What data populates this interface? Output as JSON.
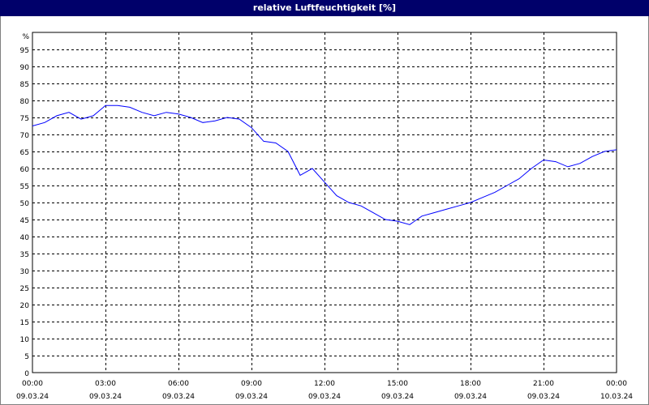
{
  "title": "relative Luftfeuchtigkeit [%]",
  "colors": {
    "title_bg": "#00006a",
    "title_fg": "#ffffff",
    "line": "#0000ff",
    "grid": "#000000"
  },
  "chart_data": {
    "type": "line",
    "title": "relative Luftfeuchtigkeit [%]",
    "ylabel": "%",
    "ylim": [
      0,
      100
    ],
    "yticks": [
      0,
      5,
      10,
      15,
      20,
      25,
      30,
      35,
      40,
      45,
      50,
      55,
      60,
      65,
      70,
      75,
      80,
      85,
      90,
      95
    ],
    "xlim": [
      "09.03.24 00:00",
      "10.03.24 00:00"
    ],
    "xticks": [
      {
        "time": "00:00",
        "date": "09.03.24"
      },
      {
        "time": "03:00",
        "date": "09.03.24"
      },
      {
        "time": "06:00",
        "date": "09.03.24"
      },
      {
        "time": "09:00",
        "date": "09.03.24"
      },
      {
        "time": "12:00",
        "date": "09.03.24"
      },
      {
        "time": "15:00",
        "date": "09.03.24"
      },
      {
        "time": "18:00",
        "date": "09.03.24"
      },
      {
        "time": "21:00",
        "date": "09.03.24"
      },
      {
        "time": "00:00",
        "date": "10.03.24"
      }
    ],
    "grid": true,
    "series": [
      {
        "color": "#0000ff",
        "x": [
          "00:00",
          "00:30",
          "01:00",
          "01:30",
          "02:00",
          "02:30",
          "03:00",
          "03:30",
          "04:00",
          "04:30",
          "05:00",
          "05:30",
          "06:00",
          "06:30",
          "07:00",
          "07:30",
          "08:00",
          "08:30",
          "09:00",
          "09:30",
          "10:00",
          "10:30",
          "11:00",
          "11:30",
          "12:00",
          "12:30",
          "13:00",
          "13:30",
          "14:00",
          "14:30",
          "15:00",
          "15:30",
          "16:00",
          "16:30",
          "17:00",
          "17:30",
          "18:00",
          "18:30",
          "19:00",
          "19:30",
          "20:00",
          "20:30",
          "21:00",
          "21:30",
          "22:00",
          "22:30",
          "23:00",
          "23:30",
          "24:00"
        ],
        "values": [
          72.5,
          73.5,
          75.5,
          76.5,
          74.5,
          75.5,
          78.5,
          78.5,
          78,
          76.5,
          75.5,
          76.5,
          76,
          75,
          73.5,
          74,
          75,
          74.5,
          72,
          68,
          67.5,
          65,
          58,
          60,
          56,
          52,
          50,
          49,
          47,
          45,
          44.5,
          43.5,
          46,
          47,
          48,
          49,
          50,
          51.5,
          53,
          55,
          57,
          60,
          62.5,
          62,
          60.5,
          61.5,
          63.5,
          65,
          65.5
        ]
      }
    ]
  }
}
